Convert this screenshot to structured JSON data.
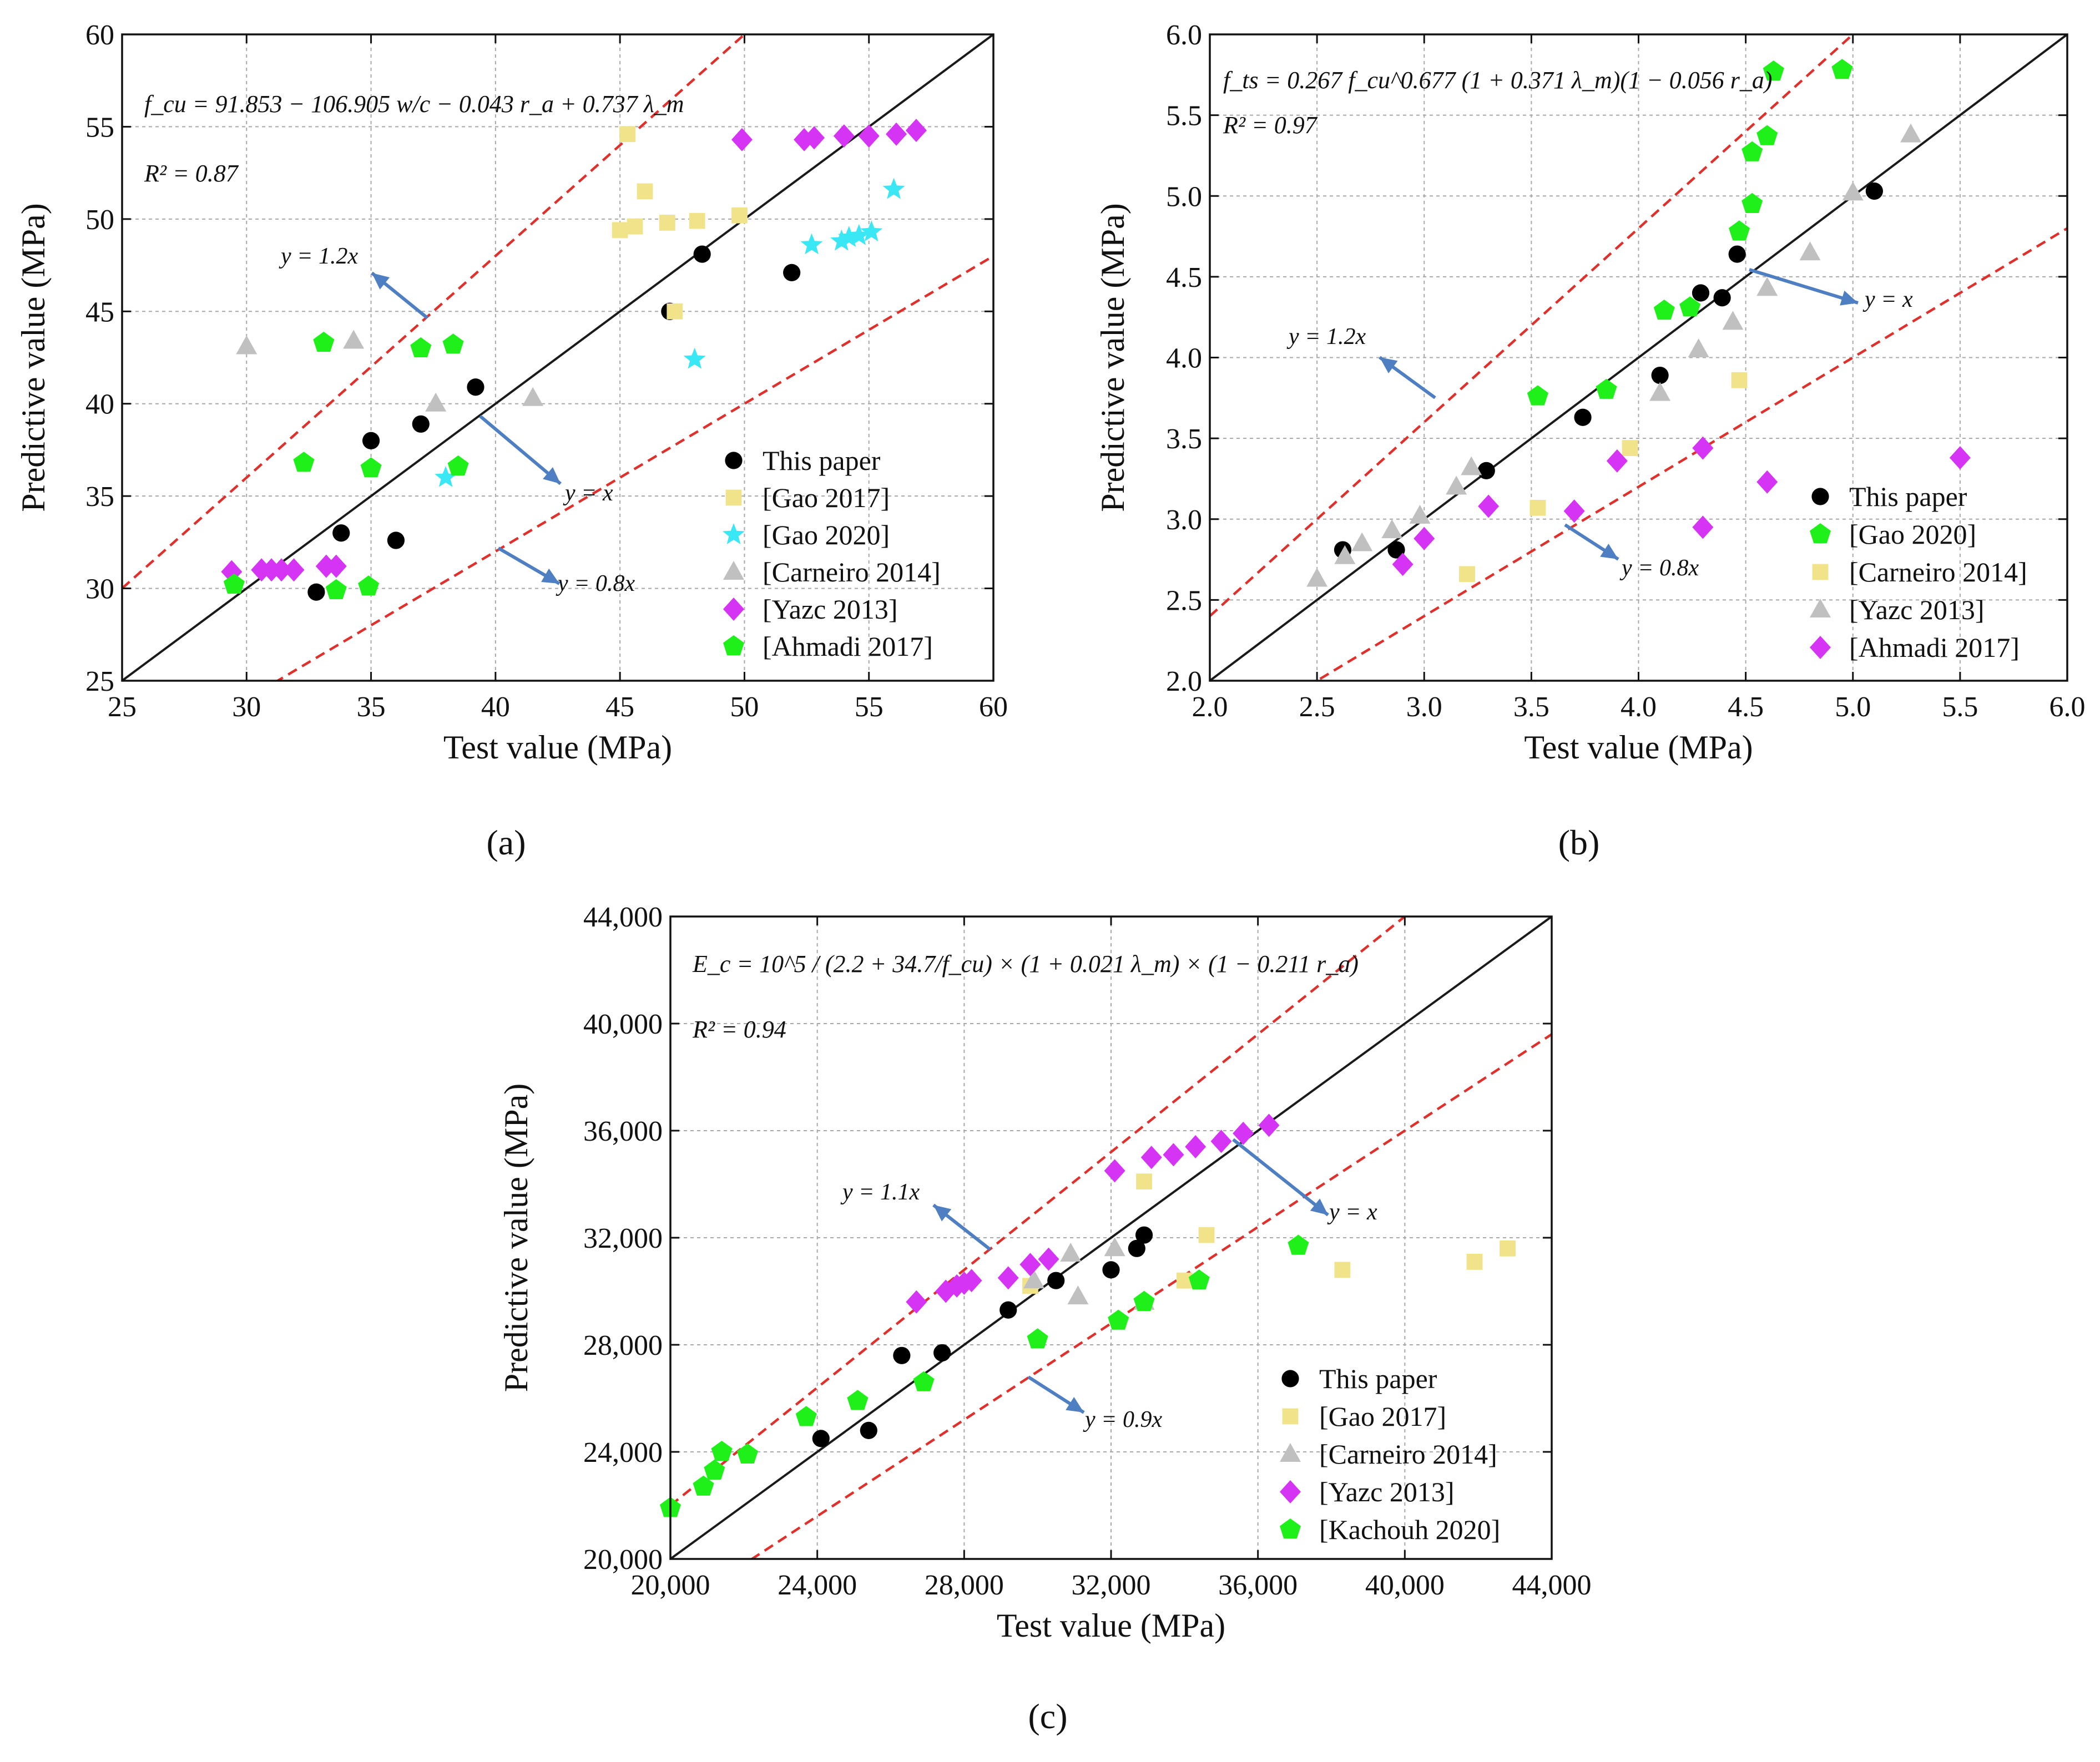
{
  "colors": {
    "this_paper": "#000000",
    "gao2017": "#f1e38a",
    "gao2020": "#39e7f5",
    "carneiro2014": "#c0c0c0",
    "yazc2013": "#d534f5",
    "ahmadi2017": "#1ff01a",
    "kachouh2020": "#1ff01a",
    "ref_line": "#e0302c",
    "fit_line": "#1a1a1a",
    "arrow": "#4e7fc3"
  },
  "chart_data": [
    {
      "id": "a",
      "type": "scatter",
      "subfigure_label": "(a)",
      "xlabel": "Test value (MPa)",
      "ylabel": "Predictive value (MPa)",
      "xlim": [
        25,
        60
      ],
      "ylim": [
        25,
        60
      ],
      "xticks": [
        "25",
        "30",
        "35",
        "40",
        "45",
        "50",
        "55",
        "60"
      ],
      "yticks": [
        "25",
        "30",
        "35",
        "40",
        "45",
        "50",
        "55",
        "60"
      ],
      "grid": true,
      "legend_position": "bottom-right",
      "equation": "f_cu = 91.853 − 106.905 w/c − 0.043 r_a + 0.737 λ_m",
      "r2": "R² = 0.87",
      "lines": [
        {
          "label": "y = x",
          "slope": 1.0,
          "style": "solid"
        },
        {
          "label": "y = 1.2x",
          "slope": 1.2,
          "style": "dashed"
        },
        {
          "label": "y = 0.8x",
          "slope": 0.8,
          "style": "dashed"
        }
      ],
      "series": [
        {
          "name": "This paper",
          "marker": "circle",
          "color": "#000000",
          "points": [
            [
              32.8,
              29.8
            ],
            [
              33.8,
              33.0
            ],
            [
              35.0,
              38.0
            ],
            [
              36.0,
              32.6
            ],
            [
              37.0,
              38.9
            ],
            [
              39.2,
              40.9
            ],
            [
              47.0,
              45.0
            ],
            [
              48.3,
              48.1
            ],
            [
              51.9,
              47.1
            ]
          ]
        },
        {
          "name": "[Gao 2017]",
          "marker": "square",
          "color": "#f1e38a",
          "points": [
            [
              45.0,
              49.4
            ],
            [
              45.3,
              54.6
            ],
            [
              45.6,
              49.6
            ],
            [
              46.0,
              51.5
            ],
            [
              46.9,
              49.8
            ],
            [
              47.2,
              45.0
            ],
            [
              48.1,
              49.9
            ],
            [
              49.8,
              50.2
            ]
          ]
        },
        {
          "name": "[Gao 2020]",
          "marker": "star",
          "color": "#39e7f5",
          "points": [
            [
              38.0,
              36.0
            ],
            [
              48.0,
              42.4
            ],
            [
              52.7,
              48.6
            ],
            [
              53.9,
              48.8
            ],
            [
              54.2,
              49.0
            ],
            [
              54.6,
              49.1
            ],
            [
              55.1,
              49.3
            ],
            [
              56.0,
              51.6
            ]
          ]
        },
        {
          "name": "[Carneiro 2014]",
          "marker": "triangle",
          "color": "#c0c0c0",
          "points": [
            [
              30.0,
              43.1
            ],
            [
              34.3,
              43.4
            ],
            [
              37.6,
              40.0
            ],
            [
              41.5,
              40.3
            ]
          ]
        },
        {
          "name": "[Yazc 2013]",
          "marker": "diamond",
          "color": "#d534f5",
          "points": [
            [
              29.4,
              30.9
            ],
            [
              30.6,
              31.0
            ],
            [
              31.0,
              31.0
            ],
            [
              31.4,
              31.0
            ],
            [
              31.9,
              31.0
            ],
            [
              33.2,
              31.2
            ],
            [
              33.6,
              31.2
            ],
            [
              49.9,
              54.3
            ],
            [
              52.4,
              54.3
            ],
            [
              52.8,
              54.4
            ],
            [
              54.0,
              54.5
            ],
            [
              55.0,
              54.5
            ],
            [
              56.1,
              54.6
            ],
            [
              56.9,
              54.8
            ]
          ]
        },
        {
          "name": "[Ahmadi 2017]",
          "marker": "pentagon",
          "color": "#1ff01a",
          "points": [
            [
              29.5,
              30.2
            ],
            [
              32.3,
              36.8
            ],
            [
              33.1,
              43.3
            ],
            [
              33.6,
              29.9
            ],
            [
              34.9,
              30.1
            ],
            [
              35.0,
              36.5
            ],
            [
              37.0,
              43.0
            ],
            [
              38.3,
              43.2
            ],
            [
              38.5,
              36.6
            ]
          ]
        }
      ]
    },
    {
      "id": "b",
      "type": "scatter",
      "subfigure_label": "(b)",
      "xlabel": "Test value (MPa)",
      "ylabel": "Predictive value (MPa)",
      "xlim": [
        2.0,
        6.0
      ],
      "ylim": [
        2.0,
        6.0
      ],
      "xticks": [
        "2.0",
        "2.5",
        "3.0",
        "3.5",
        "4.0",
        "4.5",
        "5.0",
        "5.5",
        "6.0"
      ],
      "yticks": [
        "2.0",
        "2.5",
        "3.0",
        "3.5",
        "4.0",
        "4.5",
        "5.0",
        "5.5",
        "6.0"
      ],
      "grid": true,
      "legend_position": "bottom-right",
      "equation": "f_ts = 0.267 f_cu^0.677 (1 + 0.371 λ_m)(1 − 0.056 r_a)",
      "r2": "R² = 0.97",
      "lines": [
        {
          "label": "y = x",
          "slope": 1.0,
          "style": "solid"
        },
        {
          "label": "y = 1.2x",
          "slope": 1.2,
          "style": "dashed"
        },
        {
          "label": "y = 0.8x",
          "slope": 0.8,
          "style": "dashed"
        }
      ],
      "series": [
        {
          "name": "This paper",
          "marker": "circle",
          "color": "#000000",
          "points": [
            [
              2.62,
              2.81
            ],
            [
              2.87,
              2.81
            ],
            [
              3.29,
              3.3
            ],
            [
              3.74,
              3.63
            ],
            [
              4.1,
              3.89
            ],
            [
              4.29,
              4.4
            ],
            [
              4.39,
              4.37
            ],
            [
              4.46,
              4.64
            ],
            [
              5.1,
              5.03
            ]
          ]
        },
        {
          "name": "[Gao 2020]",
          "marker": "pentagon",
          "color": "#1ff01a",
          "points": [
            [
              3.53,
              3.76
            ],
            [
              3.85,
              3.8
            ],
            [
              4.12,
              4.29
            ],
            [
              4.24,
              4.31
            ],
            [
              4.47,
              4.78
            ],
            [
              4.53,
              4.95
            ],
            [
              4.53,
              5.27
            ],
            [
              4.6,
              5.37
            ],
            [
              4.63,
              5.77
            ],
            [
              4.95,
              5.78
            ]
          ]
        },
        {
          "name": "[Carneiro 2014]",
          "marker": "square",
          "color": "#f1e38a",
          "points": [
            [
              3.2,
              2.66
            ],
            [
              3.53,
              3.07
            ],
            [
              3.96,
              3.44
            ],
            [
              4.47,
              3.86
            ]
          ]
        },
        {
          "name": "[Yazc 2013]",
          "marker": "triangle",
          "color": "#c0c0c0",
          "points": [
            [
              2.5,
              2.63
            ],
            [
              2.63,
              2.77
            ],
            [
              2.71,
              2.85
            ],
            [
              2.85,
              2.93
            ],
            [
              2.98,
              3.02
            ],
            [
              3.15,
              3.2
            ],
            [
              3.22,
              3.32
            ],
            [
              4.1,
              3.78
            ],
            [
              4.28,
              4.05
            ],
            [
              4.44,
              4.22
            ],
            [
              4.6,
              4.43
            ],
            [
              4.8,
              4.65
            ],
            [
              5.0,
              5.02
            ],
            [
              5.27,
              5.38
            ]
          ]
        },
        {
          "name": "[Ahmadi 2017]",
          "marker": "diamond",
          "color": "#d534f5",
          "points": [
            [
              2.9,
              2.72
            ],
            [
              3.0,
              2.88
            ],
            [
              3.3,
              3.08
            ],
            [
              3.7,
              3.05
            ],
            [
              3.9,
              3.36
            ],
            [
              4.3,
              2.95
            ],
            [
              4.3,
              3.44
            ],
            [
              4.6,
              3.23
            ],
            [
              5.5,
              3.38
            ]
          ]
        }
      ]
    },
    {
      "id": "c",
      "type": "scatter",
      "subfigure_label": "(c)",
      "xlabel": "Test value (MPa)",
      "ylabel": "Predictive value (MPa)",
      "xlim": [
        20000,
        44000
      ],
      "ylim": [
        20000,
        44000
      ],
      "xticks": [
        "20,000",
        "24,000",
        "28,000",
        "32,000",
        "36,000",
        "40,000",
        "44,000"
      ],
      "yticks": [
        "20,000",
        "24,000",
        "28,000",
        "32,000",
        "36,000",
        "40,000",
        "44,000"
      ],
      "grid": true,
      "legend_position": "bottom-right",
      "equation": "E_c = 10^5 / (2.2 + 34.7/f_cu) × (1 + 0.021 λ_m) × (1 − 0.211 r_a)",
      "r2": "R² = 0.94",
      "lines": [
        {
          "label": "y = x",
          "slope": 1.0,
          "style": "solid"
        },
        {
          "label": "y = 1.1x",
          "slope": 1.1,
          "style": "dashed"
        },
        {
          "label": "y = 0.9x",
          "slope": 0.9,
          "style": "dashed"
        }
      ],
      "series": [
        {
          "name": "This paper",
          "marker": "circle",
          "color": "#000000",
          "points": [
            [
              24100,
              24500
            ],
            [
              25400,
              24800
            ],
            [
              26300,
              27600
            ],
            [
              27400,
              27700
            ],
            [
              29200,
              29300
            ],
            [
              30500,
              30400
            ],
            [
              32000,
              30800
            ],
            [
              32700,
              31600
            ],
            [
              32900,
              32100
            ]
          ]
        },
        {
          "name": "[Gao 2017]",
          "marker": "square",
          "color": "#f1e38a",
          "points": [
            [
              29800,
              30200
            ],
            [
              32900,
              34100
            ],
            [
              34000,
              30400
            ],
            [
              34600,
              32100
            ],
            [
              38300,
              30800
            ],
            [
              41900,
              31100
            ],
            [
              42800,
              31600
            ]
          ]
        },
        {
          "name": "[Carneiro 2014]",
          "marker": "triangle",
          "color": "#c0c0c0",
          "points": [
            [
              29900,
              30400
            ],
            [
              30900,
              31400
            ],
            [
              31100,
              29800
            ],
            [
              32100,
              31600
            ],
            [
              32900,
              29600
            ]
          ]
        },
        {
          "name": "[Yazc 2013]",
          "marker": "diamond",
          "color": "#d534f5",
          "points": [
            [
              26700,
              29600
            ],
            [
              27500,
              30000
            ],
            [
              27800,
              30200
            ],
            [
              28000,
              30300
            ],
            [
              28200,
              30400
            ],
            [
              29200,
              30500
            ],
            [
              29800,
              31000
            ],
            [
              30300,
              31200
            ],
            [
              32100,
              34500
            ],
            [
              33100,
              35000
            ],
            [
              33700,
              35100
            ],
            [
              34300,
              35400
            ],
            [
              35000,
              35600
            ],
            [
              35600,
              35900
            ],
            [
              36300,
              36200
            ]
          ]
        },
        {
          "name": "[Kachouh 2020]",
          "marker": "pentagon",
          "color": "#1ff01a",
          "points": [
            [
              20000,
              21900
            ],
            [
              20900,
              22700
            ],
            [
              21200,
              23300
            ],
            [
              21400,
              24000
            ],
            [
              22100,
              23900
            ],
            [
              23700,
              25300
            ],
            [
              25100,
              25900
            ],
            [
              26900,
              26600
            ],
            [
              30000,
              28200
            ],
            [
              32200,
              28900
            ],
            [
              32900,
              29600
            ],
            [
              34400,
              30400
            ],
            [
              37100,
              31700
            ]
          ]
        }
      ]
    }
  ]
}
